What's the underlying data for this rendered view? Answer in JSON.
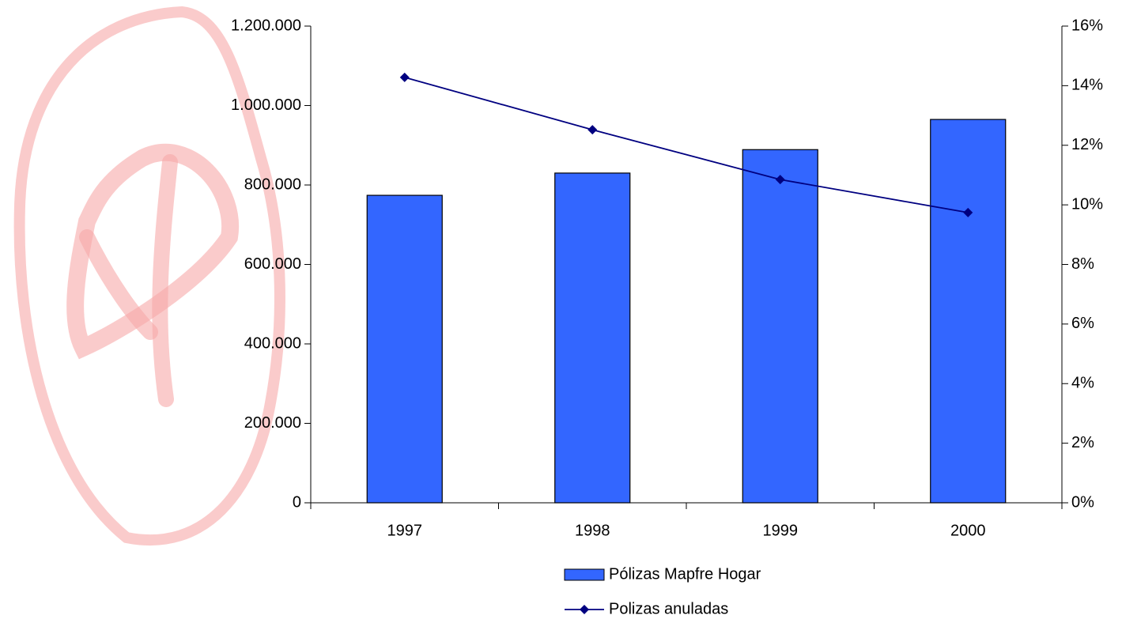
{
  "chart_data": {
    "type": "bar-line",
    "categories": [
      "1997",
      "1998",
      "1999",
      "2000"
    ],
    "series": [
      {
        "name": "Pólizas Mapfre Hogar",
        "type": "bar",
        "color": "#3366ff",
        "values": [
          774000,
          830000,
          889000,
          965000
        ]
      },
      {
        "name": "Polizas anuladas",
        "type": "line",
        "axis": "y2",
        "color": "#000080",
        "values": [
          14.28,
          12.52,
          10.85,
          9.74
        ]
      }
    ],
    "ylim": [
      0,
      1200000
    ],
    "yticks": [
      0,
      {
        "value": 200000,
        "label": "200.000"
      },
      {
        "value": 400000,
        "label": "400.000"
      },
      {
        "value": 600000,
        "label": "600.000"
      },
      {
        "value": 800000,
        "label": "800.000"
      },
      {
        "value": 1000000,
        "label": "1.000.000"
      },
      {
        "value": 1200000,
        "label": "1.200.000"
      }
    ],
    "y2lim": [
      0,
      16
    ],
    "y2ticks": [
      {
        "value": 0,
        "label": "0%"
      },
      {
        "value": 2,
        "label": "2%"
      },
      {
        "value": 4,
        "label": "4%"
      },
      {
        "value": 6,
        "label": "6%"
      },
      {
        "value": 8,
        "label": "8%"
      },
      {
        "value": 10,
        "label": "10%"
      },
      {
        "value": 12,
        "label": "12%"
      },
      {
        "value": 14,
        "label": "14%"
      },
      {
        "value": 16,
        "label": "16%"
      }
    ],
    "legend": "bottom"
  }
}
